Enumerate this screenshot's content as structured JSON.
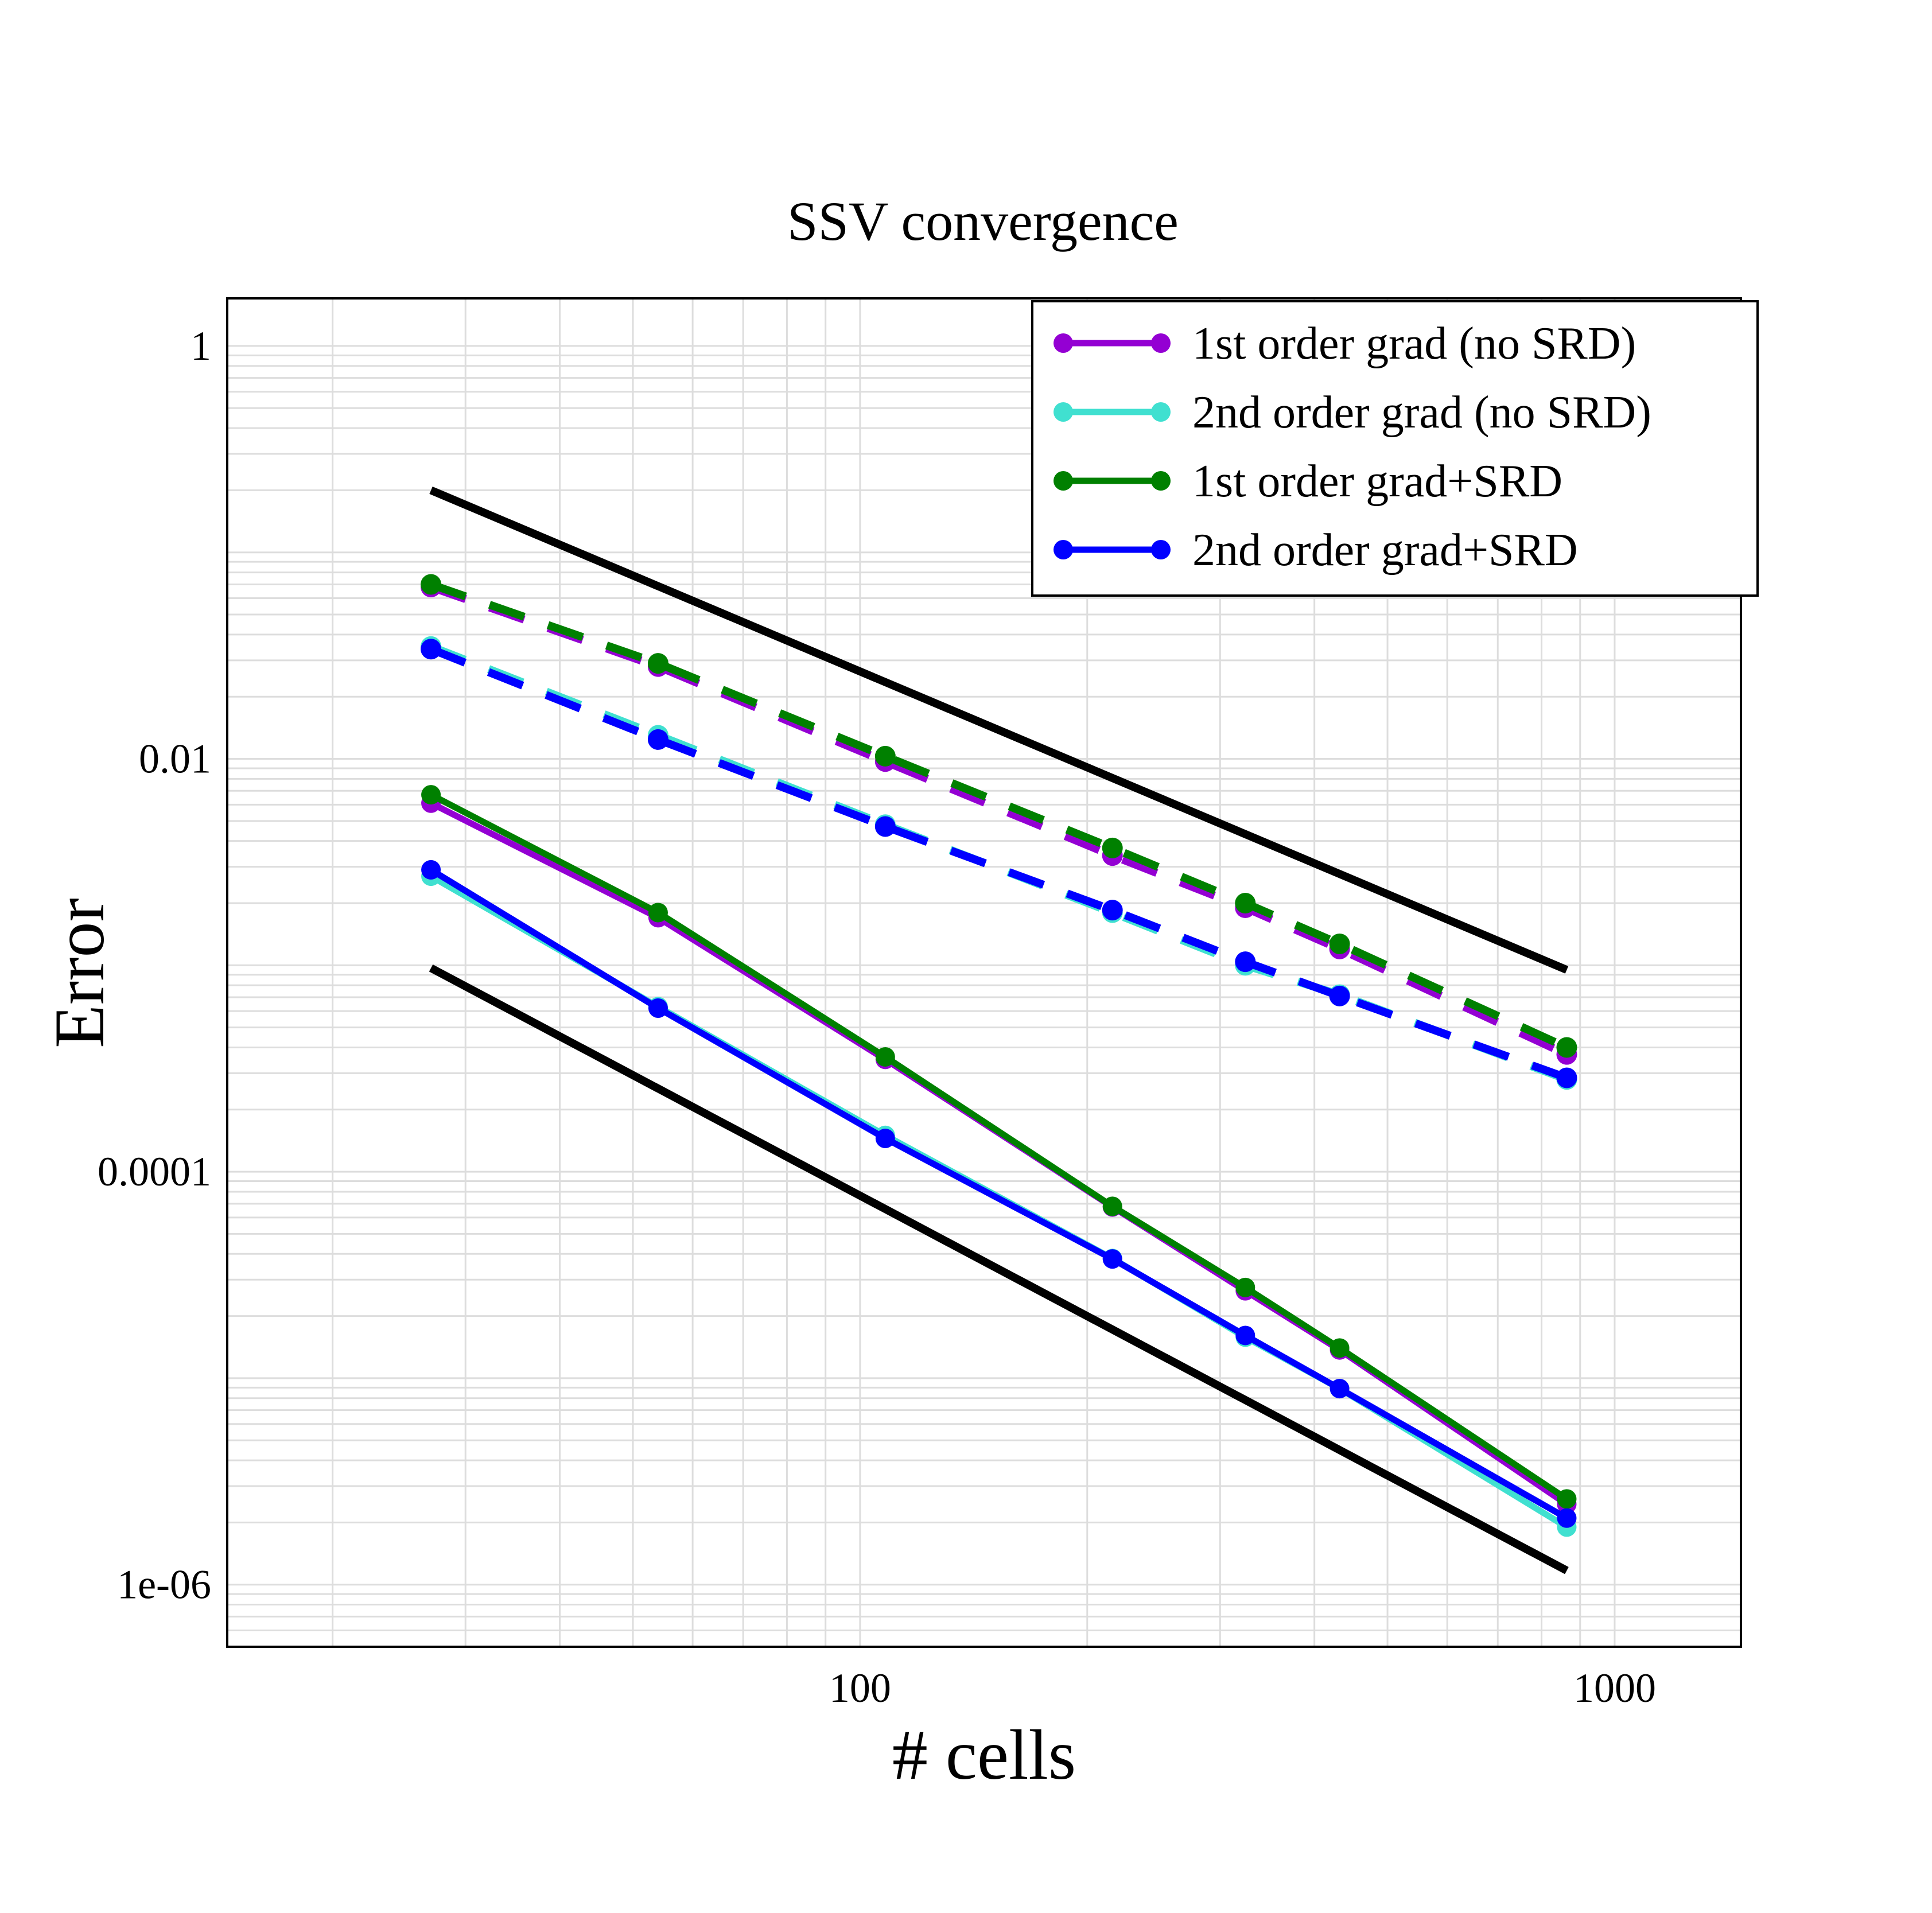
{
  "chart_data": {
    "type": "line",
    "title": "SSV convergence",
    "xlabel": "# cells",
    "ylabel": "Error",
    "xscale": "log",
    "yscale": "log",
    "xlim": [
      14.5,
      1470
    ],
    "ylim": [
      5e-07,
      1.7
    ],
    "x_ticks": [
      {
        "value": 100,
        "label": "100"
      },
      {
        "value": 1000,
        "label": "1000"
      }
    ],
    "y_ticks": [
      {
        "value": 1,
        "label": "1"
      },
      {
        "value": 0.01,
        "label": "0.01"
      },
      {
        "value": 0.0001,
        "label": "0.0001"
      },
      {
        "value": 1e-06,
        "label": "1e-06"
      }
    ],
    "grid": true,
    "legend_position": "top-right",
    "series": [
      {
        "name": "1st  order grad  (no SRD)",
        "color": "#9400D3",
        "solid": {
          "x": [
            27,
            54,
            108,
            216,
            324,
            432,
            864
          ],
          "y": [
            0.0061,
            0.0017,
            0.00035,
            6.75e-05,
            2.65e-05,
            1.37e-05,
            2.45e-06
          ]
        },
        "dashed": {
          "x": [
            27,
            54,
            108,
            216,
            324,
            432,
            864
          ],
          "y": [
            0.068,
            0.028,
            0.0097,
            0.0034,
            0.0019,
            0.0012,
            0.00037
          ]
        }
      },
      {
        "name": "2nd order grad (no SRD)",
        "color": "#40E0D0",
        "solid": {
          "x": [
            27,
            54,
            108,
            216,
            324,
            432,
            864
          ],
          "y": [
            0.0027,
            0.00063,
            0.00015,
            3.8e-05,
            1.58e-05,
            8.9e-06,
            1.9e-06
          ]
        },
        "dashed": {
          "x": [
            27,
            54,
            108,
            216,
            324,
            432,
            864
          ],
          "y": [
            0.035,
            0.013,
            0.0048,
            0.0018,
            0.001,
            0.00072,
            0.00028
          ]
        }
      },
      {
        "name": "1st  order grad+SRD",
        "color": "#008000",
        "solid": {
          "x": [
            27,
            54,
            108,
            216,
            324,
            432,
            864
          ],
          "y": [
            0.0067,
            0.0018,
            0.00036,
            6.8e-05,
            2.75e-05,
            1.4e-05,
            2.6e-06
          ]
        },
        "dashed": {
          "x": [
            27,
            54,
            108,
            216,
            324,
            432,
            864
          ],
          "y": [
            0.07,
            0.029,
            0.0103,
            0.0037,
            0.002,
            0.00127,
            0.0004
          ]
        }
      },
      {
        "name": "2nd order grad+SRD",
        "color": "#0000FF",
        "solid": {
          "x": [
            27,
            54,
            108,
            216,
            324,
            432,
            864
          ],
          "y": [
            0.0029,
            0.00062,
            0.000145,
            3.78e-05,
            1.61e-05,
            8.9e-06,
            2.1e-06
          ]
        },
        "dashed": {
          "x": [
            27,
            54,
            108,
            216,
            324,
            432,
            864
          ],
          "y": [
            0.034,
            0.0124,
            0.0047,
            0.00185,
            0.00104,
            0.00071,
            0.000285
          ]
        }
      }
    ],
    "reference_lines": [
      {
        "color": "#000000",
        "x": [
          27,
          864
        ],
        "y": [
          0.2,
          0.00095
        ]
      },
      {
        "color": "#000000",
        "x": [
          27,
          864
        ],
        "y": [
          0.00097,
          1.17e-06
        ]
      }
    ]
  }
}
